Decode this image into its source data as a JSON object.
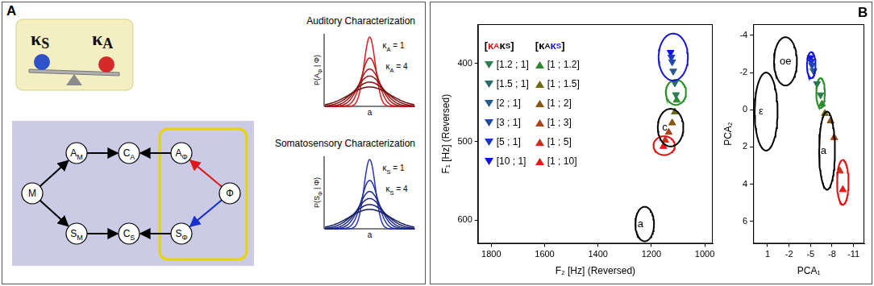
{
  "panel_labels": [
    "A",
    "B"
  ],
  "diagram": {
    "balance": [
      [
        {
          "text": "κ"
        },
        {
          "text": "S",
          "sub": true
        }
      ],
      [
        {
          "text": "κ"
        },
        {
          "text": "A",
          "sub": true
        }
      ]
    ],
    "balance_colors": [
      "#2f52c8",
      "#d42a2a"
    ],
    "characterizations": [
      {
        "title": "Auditory Characterization",
        "ylabel": [
          {
            "text": "P(A"
          },
          {
            "text": "Φ",
            "sub": true
          },
          {
            "text": " | Φ)"
          }
        ],
        "xlabel": "a",
        "curve_labels": [
          [
            {
              "text": "κ"
            },
            {
              "text": "A",
              "sub": true
            },
            {
              "text": " = 1"
            }
          ],
          [
            {
              "text": "κ"
            },
            {
              "text": "A",
              "sub": true
            },
            {
              "text": " = 4"
            }
          ]
        ],
        "color": "#d42020"
      },
      {
        "title": "Somatosensory Characterization",
        "ylabel": [
          {
            "text": "P(S"
          },
          {
            "text": "Φ",
            "sub": true
          },
          {
            "text": " | Φ)"
          }
        ],
        "xlabel": "a",
        "curve_labels": [
          [
            {
              "text": "κ"
            },
            {
              "text": "S",
              "sub": true
            },
            {
              "text": " = 1"
            }
          ],
          [
            {
              "text": "κ"
            },
            {
              "text": "S",
              "sub": true
            },
            {
              "text": " = 4"
            }
          ]
        ],
        "color": "#2838b8"
      }
    ],
    "nodes": [
      [
        {
          "text": "M"
        }
      ],
      [
        {
          "text": "A"
        },
        {
          "text": "M",
          "sub": true
        }
      ],
      [
        {
          "text": "S"
        },
        {
          "text": "M",
          "sub": true
        }
      ],
      [
        {
          "text": "C"
        },
        {
          "text": "A",
          "sub": true
        }
      ],
      [
        {
          "text": "C"
        },
        {
          "text": "S",
          "sub": true
        }
      ],
      [
        {
          "text": "A"
        },
        {
          "text": "Φ",
          "sub": true
        }
      ],
      [
        {
          "text": "S"
        },
        {
          "text": "Φ",
          "sub": true
        }
      ],
      [
        {
          "text": "Φ"
        }
      ]
    ],
    "edges": [
      {
        "from": 0,
        "to": 1,
        "color": "#000000"
      },
      {
        "from": 0,
        "to": 2,
        "color": "#000000"
      },
      {
        "from": 1,
        "to": 3,
        "color": "#000000"
      },
      {
        "from": 2,
        "to": 4,
        "color": "#000000"
      },
      {
        "from": 5,
        "to": 3,
        "color": "#000000"
      },
      {
        "from": 6,
        "to": 4,
        "color": "#000000"
      },
      {
        "from": 7,
        "to": 5,
        "color": "#e01818"
      },
      {
        "from": 7,
        "to": 6,
        "color": "#1830d0"
      }
    ]
  },
  "legend_headers": [
    [
      {
        "text": "["
      },
      {
        "text": "κ",
        "color": "#e01010"
      },
      {
        "text": "A",
        "sub": true,
        "color": "#e01010"
      },
      {
        "text": " κ"
      },
      {
        "text": "S",
        "sub": true
      },
      {
        "text": "]"
      }
    ],
    [
      {
        "text": "["
      },
      {
        "text": "κ"
      },
      {
        "text": "A",
        "sub": true
      },
      {
        "text": " κ",
        "color": "#1515d0"
      },
      {
        "text": "S",
        "sub": true,
        "color": "#1515d0"
      },
      {
        "text": "]"
      }
    ]
  ],
  "chart_data": [
    {
      "type": "scatter",
      "x_label": "F₂ [Hz] (Reversed)",
      "y_label": "F₁ [Hz] (Reversed)",
      "xlim": [
        1850,
        970
      ],
      "xticks": [
        1800,
        1600,
        1400,
        1200,
        1000
      ],
      "ylim": [
        630,
        350
      ],
      "yticks": [
        400,
        500,
        600
      ],
      "grid": false,
      "legend": "upper left",
      "series": [
        {
          "name": "[1.2 ; 1]",
          "color": "#2e7d4f",
          "marker": "triangle_down",
          "values": [
            [
              1108,
              440
            ]
          ]
        },
        {
          "name": "[1.5 ; 1]",
          "color": "#2a6a6e",
          "marker": "triangle_down",
          "values": [
            [
              1112,
              425
            ]
          ]
        },
        {
          "name": "[2 ; 1]",
          "color": "#255a8c",
          "marker": "triangle_down",
          "values": [
            [
              1118,
              410
            ]
          ]
        },
        {
          "name": "[3 ; 1]",
          "color": "#1f48aa",
          "marker": "triangle_down",
          "values": [
            [
              1122,
              398
            ]
          ]
        },
        {
          "name": "[5 ; 1]",
          "color": "#1a32c8",
          "marker": "triangle_down",
          "values": [
            [
              1125,
              392
            ]
          ]
        },
        {
          "name": "[10 ; 1]",
          "color": "#1010e6",
          "marker": "triangle_down",
          "values": [
            [
              1128,
              386
            ]
          ]
        },
        {
          "name": "[1 ; 1.2]",
          "color": "#2f8a2f",
          "marker": "triangle_up",
          "values": [
            [
              1105,
              447
            ]
          ]
        },
        {
          "name": "[1 ; 1.5]",
          "color": "#6e6a12",
          "marker": "triangle_up",
          "values": [
            [
              1112,
              462
            ]
          ]
        },
        {
          "name": "[1 ; 2]",
          "color": "#8a5510",
          "marker": "triangle_up",
          "values": [
            [
              1122,
              476
            ]
          ]
        },
        {
          "name": "[1 ; 3]",
          "color": "#a84416",
          "marker": "triangle_up",
          "values": [
            [
              1135,
              488
            ]
          ]
        },
        {
          "name": "[1 ; 5]",
          "color": "#c8301a",
          "marker": "triangle_up",
          "values": [
            [
              1148,
              498
            ]
          ]
        },
        {
          "name": "[1 ; 10]",
          "color": "#ee1515",
          "marker": "triangle_up",
          "values": [
            [
              1155,
              506
            ]
          ]
        }
      ],
      "ellipses": [
        {
          "center": [
            1118,
            392
          ],
          "radii": [
            55,
            30
          ],
          "color": "#1515d0"
        },
        {
          "center": [
            1108,
            437
          ],
          "radii": [
            38,
            16
          ],
          "color": "#1f8f1f"
        },
        {
          "label": "c",
          "center": [
            1128,
            482
          ],
          "radii": [
            48,
            24
          ],
          "color": "#000000"
        },
        {
          "center": [
            1152,
            505
          ],
          "radii": [
            40,
            12
          ],
          "color": "#e01010"
        },
        {
          "label": "a",
          "center": [
            1225,
            605
          ],
          "radii": [
            35,
            22
          ],
          "color": "#000000"
        }
      ]
    },
    {
      "type": "scatter",
      "x_label": "PCA₁",
      "y_label": "PCA₂",
      "xlim": [
        3,
        -12.5
      ],
      "xticks": [
        1,
        -2,
        -5,
        -8,
        -11
      ],
      "ylim": [
        7.2,
        -4.6
      ],
      "yticks": [
        -4,
        -2,
        0,
        2,
        4,
        6
      ],
      "grid": false,
      "legend": false,
      "series": [
        {
          "color": "#2e7d4f",
          "marker": "triangle_down",
          "values": [
            [
              -6.4,
              -0.8
            ]
          ]
        },
        {
          "color": "#2a6a6e",
          "marker": "triangle_down",
          "values": [
            [
              -5.9,
              -1.4
            ]
          ]
        },
        {
          "color": "#255a8c",
          "marker": "triangle_down",
          "values": [
            [
              -5.4,
              -2.1
            ]
          ]
        },
        {
          "color": "#1f48aa",
          "marker": "triangle_down",
          "values": [
            [
              -5.2,
              -2.4
            ]
          ]
        },
        {
          "color": "#1a32c8",
          "marker": "triangle_down",
          "values": [
            [
              -5.1,
              -2.6
            ]
          ]
        },
        {
          "color": "#1010e6",
          "marker": "triangle_down",
          "values": [
            [
              -5.0,
              -2.8
            ]
          ]
        },
        {
          "color": "#2f8a2f",
          "marker": "triangle_up",
          "values": [
            [
              -6.6,
              -0.3
            ]
          ]
        },
        {
          "color": "#6e6a12",
          "marker": "triangle_up",
          "values": [
            [
              -7.0,
              0.2
            ]
          ]
        },
        {
          "color": "#8a5510",
          "marker": "triangle_up",
          "values": [
            [
              -7.8,
              0.6
            ]
          ]
        },
        {
          "color": "#a84416",
          "marker": "triangle_up",
          "values": [
            [
              -8.3,
              1.5
            ]
          ]
        },
        {
          "color": "#c8301a",
          "marker": "triangle_up",
          "values": [
            [
              -9.1,
              3.3
            ]
          ]
        },
        {
          "color": "#ee1515",
          "marker": "triangle_up",
          "values": [
            [
              -9.5,
              4.3
            ]
          ]
        }
      ],
      "ellipses": [
        {
          "label": "ε",
          "center": [
            1.2,
            0.1
          ],
          "radii": [
            1.6,
            2.1
          ],
          "color": "#000000"
        },
        {
          "label": "oe",
          "center": [
            -1.5,
            -2.6
          ],
          "radii": [
            1.6,
            1.3
          ],
          "color": "#000000"
        },
        {
          "center": [
            -5.1,
            -2.4
          ],
          "radii": [
            0.6,
            0.7
          ],
          "color": "#1515d0"
        },
        {
          "center": [
            -6.4,
            -0.9
          ],
          "radii": [
            0.6,
            0.8
          ],
          "color": "#1f8f1f"
        },
        {
          "label": "a",
          "center": [
            -7.3,
            2.2
          ],
          "radii": [
            1.1,
            2.1
          ],
          "color": "#000000"
        },
        {
          "center": [
            -9.5,
            3.9
          ],
          "radii": [
            0.8,
            1.2
          ],
          "color": "#e01010"
        }
      ]
    }
  ]
}
